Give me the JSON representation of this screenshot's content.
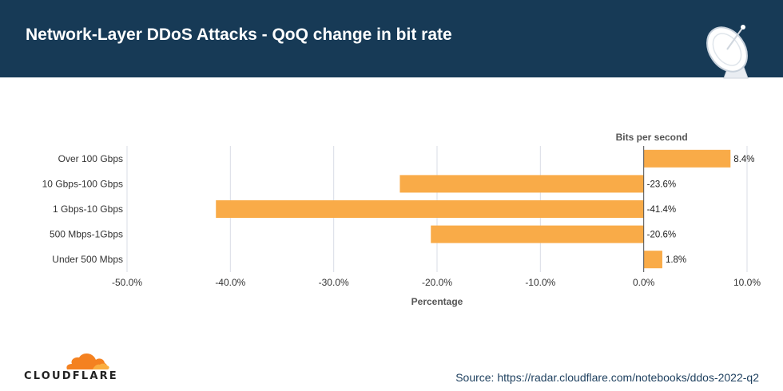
{
  "header": {
    "title": "Network-Layer DDoS Attacks - QoQ change in bit rate"
  },
  "icons": {
    "header_illustration": "satellite-dish-icon",
    "brand_logo": "cloud-icon"
  },
  "colors": {
    "header_bg": "#173a56",
    "bar": "#f9ab48",
    "grid": "#d9dce6",
    "source_text": "#1d3f5e"
  },
  "chart_data": {
    "type": "bar",
    "orientation": "horizontal",
    "title": "Bits per second",
    "xlabel": "Percentage",
    "ylabel": "",
    "categories": [
      "Over 100 Gbps",
      "10 Gbps-100 Gbps",
      "1 Gbps-10 Gbps",
      "500 Mbps-1Gbps",
      "Under 500 Mbps"
    ],
    "values": [
      8.4,
      -23.6,
      -41.4,
      -20.6,
      1.8
    ],
    "data_labels": [
      "8.4%",
      "-23.6%",
      "-41.4%",
      "-20.6%",
      "1.8%"
    ],
    "xlim": [
      -50,
      10
    ],
    "xticks": [
      -50,
      -40,
      -30,
      -20,
      -10,
      0,
      10
    ],
    "xtick_labels": [
      "-50.0%",
      "-40.0%",
      "-30.0%",
      "-20.0%",
      "-10.0%",
      "0.0%",
      "10.0%"
    ],
    "grid": true,
    "legend": false
  },
  "footer": {
    "brand": "CLOUDFLARE",
    "source": "Source: https://radar.cloudflare.com/notebooks/ddos-2022-q2"
  }
}
